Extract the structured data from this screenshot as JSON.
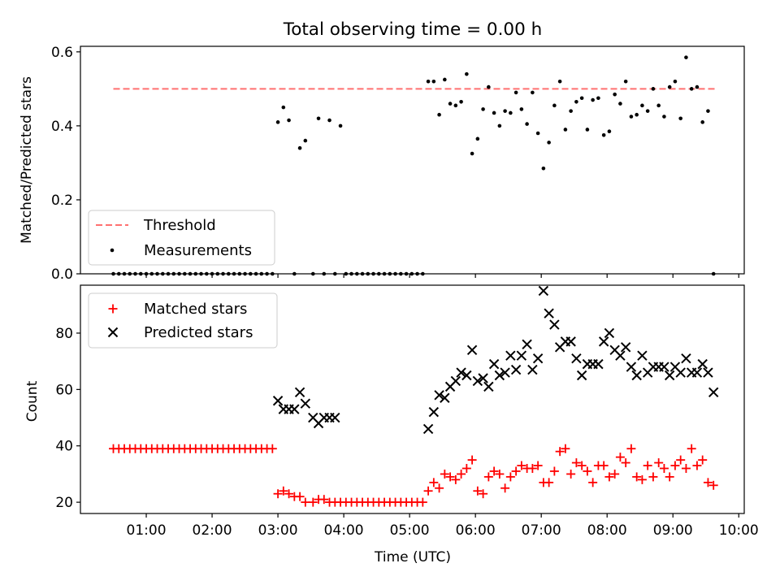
{
  "chart_data": [
    {
      "type": "scatter",
      "title": "Total observing time = 0.00 h",
      "ylabel": "Matched/Predicted stars",
      "ylim": [
        0,
        0.615
      ],
      "yticks": [
        0.0,
        0.2,
        0.4,
        0.6
      ],
      "ytick_labels": [
        "0.0",
        "0.2",
        "0.4",
        "0.6"
      ],
      "legend": {
        "placement": "lower-left"
      },
      "threshold": {
        "name": "Threshold",
        "value": 0.5,
        "x_range": [
          "00:30",
          "09:40"
        ],
        "color": "#ff7070"
      },
      "series": [
        {
          "name": "Measurements",
          "color": "#000000",
          "x": [
            "00:30",
            "00:35",
            "00:40",
            "00:45",
            "00:50",
            "00:55",
            "01:00",
            "01:05",
            "01:10",
            "01:15",
            "01:20",
            "01:25",
            "01:30",
            "01:35",
            "01:40",
            "01:45",
            "01:50",
            "01:55",
            "02:00",
            "02:05",
            "02:10",
            "02:15",
            "02:20",
            "02:25",
            "02:30",
            "02:35",
            "02:40",
            "02:45",
            "02:50",
            "02:55",
            "03:00",
            "03:05",
            "03:10",
            "03:15",
            "03:20",
            "03:25",
            "03:32",
            "03:37",
            "03:42",
            "03:47",
            "03:52",
            "03:57",
            "04:02",
            "04:07",
            "04:12",
            "04:17",
            "04:22",
            "04:27",
            "04:32",
            "04:37",
            "04:42",
            "04:47",
            "04:52",
            "04:57",
            "05:02",
            "05:07",
            "05:12",
            "05:17",
            "05:22",
            "05:27",
            "05:32",
            "05:37",
            "05:42",
            "05:47",
            "05:52",
            "05:57",
            "06:02",
            "06:07",
            "06:12",
            "06:17",
            "06:22",
            "06:27",
            "06:32",
            "06:37",
            "06:42",
            "06:47",
            "06:52",
            "06:57",
            "07:02",
            "07:07",
            "07:12",
            "07:17",
            "07:22",
            "07:27",
            "07:32",
            "07:37",
            "07:42",
            "07:47",
            "07:52",
            "07:57",
            "08:02",
            "08:07",
            "08:12",
            "08:17",
            "08:22",
            "08:27",
            "08:32",
            "08:37",
            "08:42",
            "08:47",
            "08:52",
            "08:57",
            "09:02",
            "09:07",
            "09:12",
            "09:17",
            "09:22",
            "09:27",
            "09:32",
            "09:37"
          ],
          "y": [
            0,
            0,
            0,
            0,
            0,
            0,
            0,
            0,
            0,
            0,
            0,
            0,
            0,
            0,
            0,
            0,
            0,
            0,
            0,
            0,
            0,
            0,
            0,
            0,
            0,
            0,
            0,
            0,
            0,
            0,
            0.41,
            0.45,
            0.415,
            0,
            0.34,
            0.36,
            0,
            0.42,
            0,
            0.415,
            0,
            0.4,
            0,
            0,
            0,
            0,
            0,
            0,
            0,
            0,
            0,
            0,
            0,
            0,
            0,
            0,
            0,
            0.52,
            0.52,
            0.43,
            0.525,
            0.46,
            0.455,
            0.465,
            0.54,
            0.325,
            0.365,
            0.445,
            0.505,
            0.435,
            0.4,
            0.44,
            0.435,
            0.49,
            0.445,
            0.405,
            0.49,
            0.38,
            0.285,
            0.355,
            0.455,
            0.52,
            0.39,
            0.44,
            0.465,
            0.475,
            0.39,
            0.47,
            0.475,
            0.375,
            0.385,
            0.485,
            0.46,
            0.52,
            0.425,
            0.43,
            0.455,
            0.44,
            0.5,
            0.455,
            0.425,
            0.505,
            0.52,
            0.42,
            0.585,
            0.5,
            0.505,
            0.41,
            0.44,
            0
          ]
        }
      ]
    },
    {
      "type": "scatter",
      "xlabel": "Time (UTC)",
      "ylabel": "Count",
      "xlim": [
        "00:00",
        "10:05"
      ],
      "ylim": [
        16,
        97
      ],
      "xtick_labels": [
        "01:00",
        "02:00",
        "03:00",
        "04:00",
        "05:00",
        "06:00",
        "07:00",
        "08:00",
        "09:00",
        "10:00"
      ],
      "ytick_labels": [
        "20",
        "40",
        "60",
        "80"
      ],
      "legend": {
        "placement": "top-left"
      },
      "series": [
        {
          "name": "Matched stars",
          "marker": "plus",
          "color": "#ff0000",
          "x": [
            "00:30",
            "00:35",
            "00:40",
            "00:45",
            "00:50",
            "00:55",
            "01:00",
            "01:05",
            "01:10",
            "01:15",
            "01:20",
            "01:25",
            "01:30",
            "01:35",
            "01:40",
            "01:45",
            "01:50",
            "01:55",
            "02:00",
            "02:05",
            "02:10",
            "02:15",
            "02:20",
            "02:25",
            "02:30",
            "02:35",
            "02:40",
            "02:45",
            "02:50",
            "02:55",
            "03:00",
            "03:05",
            "03:10",
            "03:15",
            "03:20",
            "03:25",
            "03:32",
            "03:37",
            "03:42",
            "03:47",
            "03:52",
            "03:57",
            "04:02",
            "04:07",
            "04:12",
            "04:17",
            "04:22",
            "04:27",
            "04:32",
            "04:37",
            "04:42",
            "04:47",
            "04:52",
            "04:57",
            "05:02",
            "05:07",
            "05:12",
            "05:17",
            "05:22",
            "05:27",
            "05:32",
            "05:37",
            "05:42",
            "05:47",
            "05:52",
            "05:57",
            "06:02",
            "06:07",
            "06:12",
            "06:17",
            "06:22",
            "06:27",
            "06:32",
            "06:37",
            "06:42",
            "06:47",
            "06:52",
            "06:57",
            "07:02",
            "07:07",
            "07:12",
            "07:17",
            "07:22",
            "07:27",
            "07:32",
            "07:37",
            "07:42",
            "07:47",
            "07:52",
            "07:57",
            "08:02",
            "08:07",
            "08:12",
            "08:17",
            "08:22",
            "08:27",
            "08:32",
            "08:37",
            "08:42",
            "08:47",
            "08:52",
            "08:57",
            "09:02",
            "09:07",
            "09:12",
            "09:17",
            "09:22",
            "09:27",
            "09:32",
            "09:37"
          ],
          "y": [
            39,
            39,
            39,
            39,
            39,
            39,
            39,
            39,
            39,
            39,
            39,
            39,
            39,
            39,
            39,
            39,
            39,
            39,
            39,
            39,
            39,
            39,
            39,
            39,
            39,
            39,
            39,
            39,
            39,
            39,
            23,
            24,
            23,
            22,
            22,
            20,
            20,
            21,
            21,
            20,
            20,
            20,
            20,
            20,
            20,
            20,
            20,
            20,
            20,
            20,
            20,
            20,
            20,
            20,
            20,
            20,
            20,
            24,
            27,
            25,
            30,
            29,
            28,
            30,
            32,
            35,
            24,
            23,
            29,
            31,
            30,
            25,
            29,
            31,
            33,
            32,
            32,
            33,
            27,
            27,
            31,
            38,
            39,
            30,
            34,
            33,
            31,
            27,
            33,
            33,
            29,
            30,
            36,
            34,
            39,
            29,
            28,
            33,
            29,
            34,
            32,
            29,
            33,
            35,
            32,
            39,
            33,
            35,
            27,
            26
          ]
        },
        {
          "name": "Predicted stars",
          "marker": "x",
          "color": "#000000",
          "x": [
            "03:00",
            "03:05",
            "03:10",
            "03:15",
            "03:20",
            "03:25",
            "03:32",
            "03:37",
            "03:42",
            "03:47",
            "03:52",
            "05:17",
            "05:22",
            "05:27",
            "05:32",
            "05:37",
            "05:42",
            "05:47",
            "05:52",
            "05:57",
            "06:02",
            "06:07",
            "06:12",
            "06:17",
            "06:22",
            "06:27",
            "06:32",
            "06:37",
            "06:42",
            "06:47",
            "06:52",
            "06:57",
            "07:02",
            "07:07",
            "07:12",
            "07:17",
            "07:22",
            "07:27",
            "07:32",
            "07:37",
            "07:42",
            "07:47",
            "07:52",
            "07:57",
            "08:02",
            "08:07",
            "08:12",
            "08:17",
            "08:22",
            "08:27",
            "08:32",
            "08:37",
            "08:42",
            "08:47",
            "08:52",
            "08:57",
            "09:02",
            "09:07",
            "09:12",
            "09:17",
            "09:22",
            "09:27",
            "09:32",
            "09:37"
          ],
          "y": [
            56,
            53,
            53,
            53,
            59,
            55,
            50,
            48,
            50,
            50,
            50,
            46,
            52,
            58,
            57,
            61,
            63,
            66,
            65,
            74,
            63,
            64,
            61,
            69,
            65,
            66,
            72,
            67,
            72,
            76,
            67,
            71,
            95,
            87,
            83,
            75,
            77,
            77,
            71,
            65,
            69,
            69,
            69,
            77,
            80,
            74,
            72,
            75,
            68,
            65,
            72,
            66,
            68,
            68,
            68,
            65,
            68,
            66,
            71,
            66,
            66,
            69,
            66,
            59
          ]
        }
      ]
    }
  ]
}
